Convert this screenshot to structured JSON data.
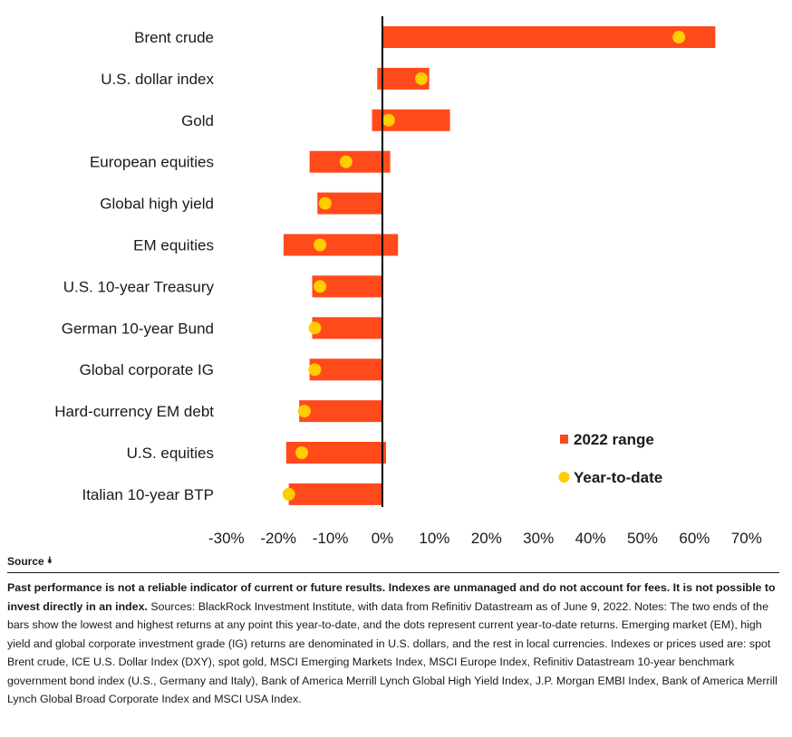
{
  "chart_data": {
    "type": "bar",
    "orientation": "horizontal",
    "categories": [
      "Brent crude",
      "U.S. dollar index",
      "Gold",
      "European equities",
      "Global high yield",
      "EM equities",
      "U.S. 10-year Treasury",
      "German 10-year Bund",
      "Global corporate IG",
      "Hard-currency EM debt",
      "U.S. equities",
      "Italian 10-year BTP"
    ],
    "series": [
      {
        "name": "2022 range",
        "type": "range-bar",
        "low": [
          0,
          -1,
          -2,
          -14,
          -12.5,
          -19,
          -13.5,
          -13.5,
          -14,
          -16,
          -18.5,
          -18
        ],
        "high": [
          64,
          9,
          13,
          1.5,
          0,
          3,
          0,
          0,
          0,
          0,
          0.7,
          0
        ]
      },
      {
        "name": "Year-to-date",
        "type": "dot",
        "values": [
          57,
          7.5,
          1.2,
          -7,
          -11,
          -12,
          -12,
          -13,
          -13,
          -15,
          -15.5,
          -18
        ]
      }
    ],
    "xlim": [
      -30,
      70
    ],
    "xticks": [
      -30,
      -20,
      -10,
      0,
      10,
      20,
      30,
      40,
      50,
      60,
      70
    ],
    "xtick_labels": [
      "-30%",
      "-20%",
      "-10%",
      "0%",
      "10%",
      "20%",
      "30%",
      "40%",
      "50%",
      "60%",
      "70%"
    ],
    "grid": false,
    "legend_position": "bottom-right",
    "colors": {
      "range": "#ff4a1c",
      "dot": "#ffcd00",
      "zero_line": "#000000"
    }
  },
  "source": {
    "label": "Source",
    "icon": "double-chevron-down-icon"
  },
  "footnote": {
    "bold": "Past performance is not a reliable indicator of current or future results. Indexes are unmanaged and do not account for fees. It is not possible to invest directly in an index.",
    "text": " Sources: BlackRock Investment Institute, with data from Refinitiv Datastream as of June 9, 2022. Notes: The two ends of the bars show the lowest and highest returns at any point this year-to-date, and the dots represent current year-to-date returns. Emerging market (EM), high yield and global corporate investment grade (IG) returns are denominated in U.S. dollars, and the rest in local currencies. Indexes or prices used are: spot Brent crude, ICE U.S. Dollar Index (DXY), spot gold, MSCI Emerging Markets Index, MSCI Europe Index, Refinitiv Datastream 10-year benchmark government bond index (U.S., Germany and Italy), Bank of America Merrill Lynch Global High Yield Index, J.P. Morgan EMBI Index, Bank of America Merrill Lynch Global Broad Corporate Index and MSCI USA Index."
  }
}
